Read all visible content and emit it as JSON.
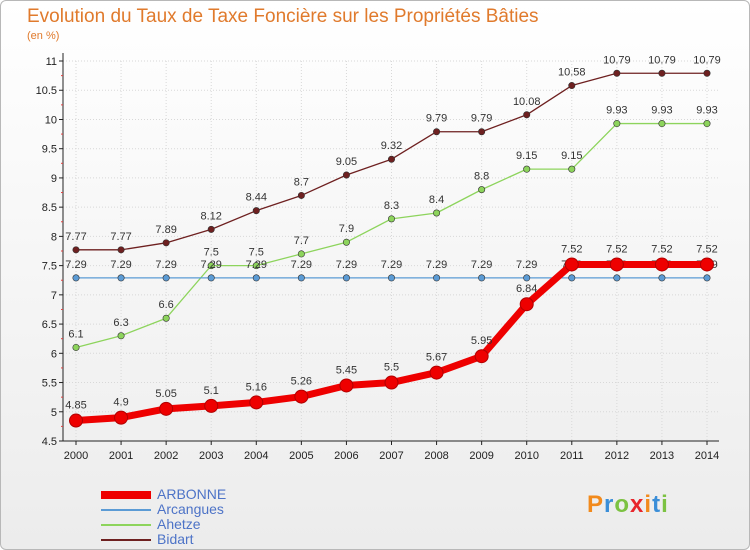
{
  "header": {
    "title": "Evolution du Taux de Taxe Foncière sur les Propriétés Bâties",
    "unit": "(en %)"
  },
  "logo": {
    "text": "Proxiti",
    "colors": [
      "#f28a1c",
      "#3a8ed8",
      "#7cc242",
      "#e8262c",
      "#f28a1c",
      "#3a8ed8",
      "#7cc242"
    ]
  },
  "chart_data": {
    "type": "line",
    "x": [
      "2000",
      "2001",
      "2002",
      "2003",
      "2004",
      "2005",
      "2006",
      "2007",
      "2008",
      "2009",
      "2010",
      "2011",
      "2012",
      "2013",
      "2014"
    ],
    "ylim": [
      4.5,
      11
    ],
    "yticks": [
      "4.5",
      "5",
      "5.5",
      "6",
      "6.5",
      "7",
      "7.5",
      "8",
      "8.5",
      "9",
      "9.5",
      "10",
      "10.5",
      "11"
    ],
    "grid": true,
    "legend_position": "bottom-left",
    "series": [
      {
        "name": "Bidart",
        "color": "#6e2020",
        "values": [
          7.77,
          7.77,
          7.89,
          8.12,
          8.44,
          8.7,
          9.05,
          9.32,
          9.79,
          9.79,
          10.08,
          10.58,
          10.79,
          10.79,
          10.79
        ],
        "labels": [
          "7.77",
          "7.77",
          "7.89",
          "8.12",
          "8.44",
          "8.7",
          "9.05",
          "9.32",
          "9.79",
          "9.79",
          "10.08",
          "10.58",
          "10.79",
          "10.79",
          "10.79"
        ]
      },
      {
        "name": "Ahetze",
        "color": "#8dd45c",
        "values": [
          6.1,
          6.3,
          6.6,
          7.5,
          7.5,
          7.7,
          7.9,
          8.3,
          8.4,
          8.8,
          9.15,
          9.15,
          9.93,
          9.93,
          9.93
        ],
        "labels": [
          "6.1",
          "6.3",
          "6.6",
          "7.5",
          "7.5",
          "7.7",
          "7.9",
          "8.3",
          "8.4",
          "8.8",
          "9.15",
          "9.15",
          "9.93",
          "9.93",
          "9.93"
        ]
      },
      {
        "name": "Arcangues",
        "color": "#5b9bd5",
        "values": [
          7.29,
          7.29,
          7.29,
          7.29,
          7.29,
          7.29,
          7.29,
          7.29,
          7.29,
          7.29,
          7.29,
          7.29,
          7.29,
          7.29,
          7.29
        ],
        "labels": [
          "7.29",
          "7.29",
          "7.29",
          "7.29",
          "7.29",
          "7.29",
          "7.29",
          "7.29",
          "7.29",
          "7.29",
          "7.29",
          "7.29",
          "7.29",
          "7.29",
          "7.29"
        ]
      },
      {
        "name": "ARBONNE",
        "color": "#ee0000",
        "values": [
          4.85,
          4.9,
          5.05,
          5.1,
          5.16,
          5.26,
          5.45,
          5.5,
          5.67,
          5.95,
          6.84,
          7.52,
          7.52,
          7.52,
          7.52
        ],
        "labels": [
          "4.85",
          "4.9",
          "5.05",
          "5.1",
          "5.16",
          "5.26",
          "5.45",
          "5.5",
          "5.67",
          "5.95",
          "6.84",
          "7.52",
          "7.52",
          "7.52",
          "7.52"
        ]
      }
    ]
  }
}
